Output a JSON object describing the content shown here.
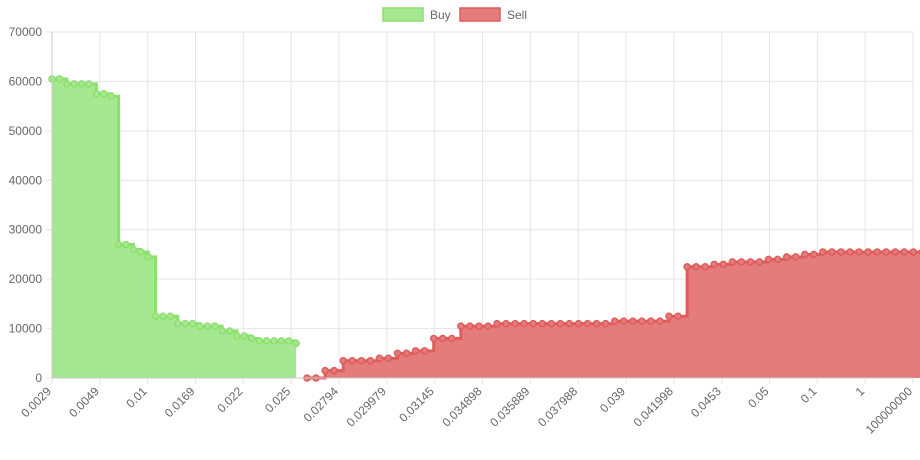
{
  "chart_data": {
    "type": "area",
    "stepped": true,
    "ylim": [
      0,
      70000
    ],
    "yticks": [
      0,
      10000,
      20000,
      30000,
      40000,
      50000,
      60000,
      70000
    ],
    "grid": true,
    "legend_position": "top-center",
    "x_tick_labels": [
      "0.0029",
      "0.0049",
      "0.01",
      "0.0169",
      "0.022",
      "0.025",
      "0.02794",
      "0.029979",
      "0.03145",
      "0.034898",
      "0.035889",
      "0.037988",
      "0.039",
      "0.041998",
      "0.0453",
      "0.05",
      "0.1",
      "1",
      "100000000"
    ],
    "series": [
      {
        "name": "Buy",
        "color": "#8ee06e",
        "fill": "#a6e891",
        "values": [
          60500,
          60500,
          59500,
          59500,
          59500,
          59500,
          57500,
          57500,
          57000,
          27000,
          27000,
          26000,
          25500,
          24500,
          12500,
          12500,
          12500,
          11000,
          11000,
          11000,
          10500,
          10500,
          10500,
          9500,
          9500,
          8500,
          8500,
          8000,
          7500,
          7500,
          7500,
          7500,
          7500,
          7000
        ]
      },
      {
        "name": "Sell",
        "color": "#e05c5c",
        "fill": "#e57c7c",
        "values": [
          0,
          0,
          1500,
          1500,
          3500,
          3500,
          3500,
          3500,
          4000,
          4000,
          5000,
          5000,
          5500,
          5500,
          8000,
          8000,
          8000,
          10500,
          10500,
          10500,
          10500,
          11000,
          11000,
          11000,
          11000,
          11000,
          11000,
          11000,
          11000,
          11000,
          11000,
          11000,
          11000,
          11000,
          11500,
          11500,
          11500,
          11500,
          11500,
          11500,
          12500,
          12500,
          22500,
          22500,
          22500,
          23000,
          23000,
          23500,
          23500,
          23500,
          23500,
          24000,
          24000,
          24500,
          24500,
          25000,
          25000,
          25500,
          25500,
          25500,
          25500,
          25500,
          25500,
          25500,
          25500,
          25500,
          25500,
          25500,
          25500
        ]
      }
    ]
  }
}
